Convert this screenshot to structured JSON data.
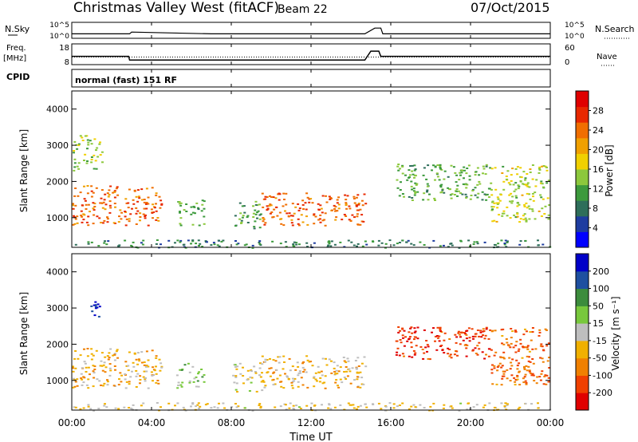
{
  "header": {
    "station": "Christmas Valley West (fitACF)",
    "beam": "Beam 22",
    "date": "07/Oct/2015"
  },
  "strip": {
    "nsky_label": "N.Sky",
    "nsky_ticks": [
      "10^5",
      "10^0"
    ],
    "nsearch_label": "N.Search",
    "nsearch_ticks": [
      "10^5",
      "10^0"
    ],
    "freq_label": "Freq.",
    "freq_unit": "[MHz]",
    "freq_ticks": [
      "18",
      "8"
    ],
    "nave_label": "Nave",
    "nave_ticks": [
      "60",
      "0"
    ],
    "cpid_label": "CPID",
    "cpid_text": "normal (fast) 151 RF"
  },
  "xaxis": {
    "label": "Time UT",
    "ticks": [
      "00:00",
      "04:00",
      "08:00",
      "12:00",
      "16:00",
      "20:00",
      "00:00"
    ]
  },
  "panels": {
    "yaxis_label": "Slant Range [km]",
    "yticks": [
      "1000",
      "2000",
      "3000",
      "4000"
    ],
    "power_label": "Power [dB]",
    "power_ticks": [
      "4",
      "8",
      "12",
      "16",
      "20",
      "24",
      "28"
    ],
    "velocity_label": "Velocity [m s⁻¹]",
    "velocity_ticks": [
      "-200",
      "-100",
      "-50",
      "-15",
      "15",
      "50",
      "100",
      "200"
    ]
  },
  "colors": {
    "power_scale": [
      "#0000ff",
      "#1e3ca0",
      "#2e6e5a",
      "#3c9a3c",
      "#8cc83c",
      "#f0d000",
      "#f0a000",
      "#f06e00",
      "#e82800",
      "#e00000"
    ],
    "velocity_scale": [
      "#e00000",
      "#f04000",
      "#f08000",
      "#f0b000",
      "#bebebe",
      "#78c83c",
      "#3c8c3c",
      "#1e50a0",
      "#0000c8"
    ]
  },
  "chart_data": [
    {
      "type": "line",
      "title": "N.Sky / N.Search",
      "x_range": [
        "00:00",
        "24:00"
      ],
      "ylim": [
        "10^0",
        "10^5"
      ],
      "series": [
        {
          "name": "N.Sky",
          "x_hours": [
            0,
            2.9,
            3.0,
            7.0,
            7.2,
            14.7,
            15.2,
            15.5,
            15.6,
            24
          ],
          "values": [
            10,
            10,
            40,
            10,
            10,
            10,
            1000,
            1000,
            10,
            10
          ]
        }
      ]
    },
    {
      "type": "line",
      "title": "Freq. [MHz] / Nave",
      "x_range": [
        "00:00",
        "24:00"
      ],
      "ylim": [
        8,
        18
      ],
      "y2lim": [
        0,
        60
      ],
      "series": [
        {
          "name": "Freq.",
          "x_hours": [
            0,
            2.85,
            2.9,
            6.95,
            7.0,
            14.7,
            15.0,
            15.4,
            15.5,
            24
          ],
          "values": [
            12,
            12,
            10.2,
            10.2,
            10.2,
            10.2,
            14.5,
            14.5,
            12,
            12
          ]
        },
        {
          "name": "Nave",
          "x_hours": [
            0,
            24
          ],
          "values": [
            22,
            22
          ]
        }
      ]
    },
    {
      "type": "heatmap",
      "title": "Power [dB]",
      "xlabel": "Time UT",
      "ylabel": "Slant Range [km]",
      "x_range_hours": [
        0,
        24
      ],
      "ylim": [
        180,
        4500
      ],
      "colorbar_range": [
        0,
        32
      ],
      "regions": [
        {
          "t0": 0.0,
          "t1": 4.5,
          "r0": 800,
          "r1": 1900,
          "value": 26
        },
        {
          "t0": 0.0,
          "t1": 1.5,
          "r0": 2300,
          "r1": 3300,
          "value": 14
        },
        {
          "t0": 5.2,
          "t1": 6.6,
          "r0": 800,
          "r1": 1500,
          "value": 12
        },
        {
          "t0": 8.0,
          "t1": 9.5,
          "r0": 700,
          "r1": 1500,
          "value": 10
        },
        {
          "t0": 9.5,
          "t1": 14.7,
          "r0": 800,
          "r1": 1700,
          "value": 26
        },
        {
          "t0": 16.2,
          "t1": 21.0,
          "r0": 1500,
          "r1": 2500,
          "value": 12
        },
        {
          "t0": 21.0,
          "t1": 23.9,
          "r0": 900,
          "r1": 2500,
          "value": 16
        },
        {
          "t0": 0.0,
          "t1": 24.0,
          "r0": 180,
          "r1": 400,
          "value": 8
        }
      ]
    },
    {
      "type": "heatmap",
      "title": "Velocity [m s⁻¹]",
      "xlabel": "Time UT",
      "ylabel": "Slant Range [km]",
      "x_range_hours": [
        0,
        24
      ],
      "ylim": [
        180,
        4500
      ],
      "colorbar_range": [
        -250,
        250
      ],
      "regions": [
        {
          "t0": 0.0,
          "t1": 4.5,
          "r0": 800,
          "r1": 1900,
          "value": -60
        },
        {
          "t0": 0.9,
          "t1": 1.4,
          "r0": 2500,
          "r1": 3200,
          "value": 200
        },
        {
          "t0": 5.2,
          "t1": 6.6,
          "r0": 800,
          "r1": 1500,
          "value": 60
        },
        {
          "t0": 8.0,
          "t1": 9.5,
          "r0": 700,
          "r1": 1500,
          "value": -20
        },
        {
          "t0": 9.5,
          "t1": 14.7,
          "r0": 800,
          "r1": 1700,
          "value": -60
        },
        {
          "t0": 16.2,
          "t1": 21.0,
          "r0": 1600,
          "r1": 2500,
          "value": -200
        },
        {
          "t0": 21.0,
          "t1": 23.9,
          "r0": 900,
          "r1": 2500,
          "value": -150
        },
        {
          "t0": 0.0,
          "t1": 24.0,
          "r0": 180,
          "r1": 400,
          "value": -30
        }
      ]
    }
  ]
}
